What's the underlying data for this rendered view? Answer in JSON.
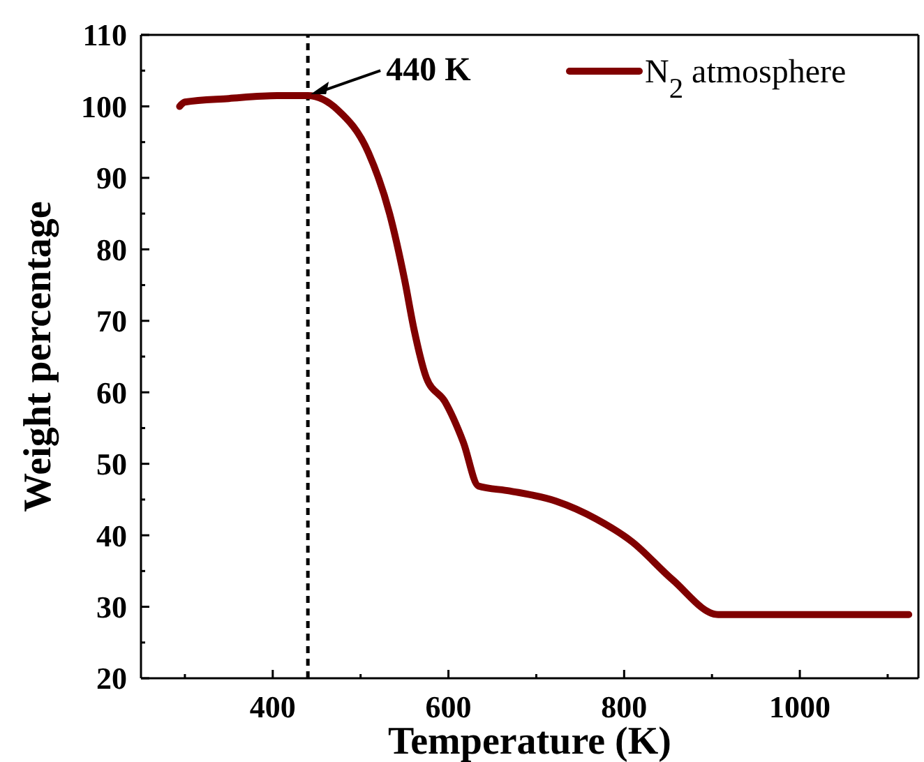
{
  "chart_data": {
    "type": "line",
    "xlabel": "Temperature (K)",
    "ylabel": "Weight percentage",
    "xlim": [
      250,
      1135
    ],
    "xticks": [
      400,
      600,
      800,
      1000
    ],
    "ylim": [
      20,
      110
    ],
    "yticks": [
      20,
      30,
      40,
      50,
      60,
      70,
      80,
      90,
      100,
      110
    ],
    "legend": "top right",
    "line_style": "solid",
    "marker": "none",
    "grid": false,
    "series": [
      {
        "name": "N$_{2}$ atmosphere",
        "color": "#800000",
        "x": [
          294,
          300,
          350,
          405,
          440,
          474,
          509,
          533,
          550,
          561,
          575,
          596,
          617,
          634,
          670,
          722,
          768,
          809,
          855,
          907,
          950,
          1050,
          1124
        ],
        "values": [
          100.0,
          100.6,
          101.1,
          101.5,
          101.5,
          99.5,
          93.5,
          85,
          75.8,
          68.7,
          62,
          58.7,
          53,
          46.9,
          46.2,
          44.8,
          42.3,
          39.1,
          33.8,
          28.9,
          28.9,
          28.9,
          28.9
        ]
      }
    ],
    "ref_lines": [
      {
        "axis": "x",
        "value": 440,
        "color": "#000000",
        "line_style": "dashed"
      }
    ],
    "annotations": [
      {
        "text": "440 K",
        "x": 440,
        "y": 101.5
      }
    ]
  }
}
